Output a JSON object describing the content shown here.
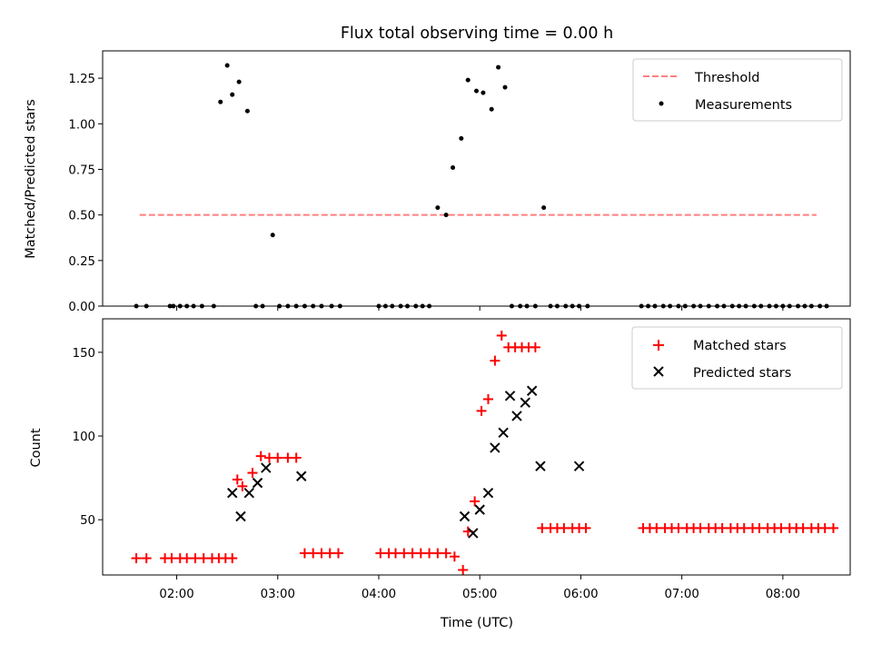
{
  "chart_data": [
    {
      "type": "scatter",
      "title": "Flux total observing time = 0.00 h",
      "ylabel": "Matched/Predicted stars",
      "xlabel": "",
      "xlim": [
        "01:16",
        "08:40"
      ],
      "ylim": [
        0,
        1.4
      ],
      "yticks": [
        0.0,
        0.25,
        0.5,
        0.75,
        1.0,
        1.25
      ],
      "ytick_labels": [
        "0.00",
        "0.25",
        "0.50",
        "0.75",
        "1.00",
        "1.25"
      ],
      "xticks": [
        "02:00",
        "03:00",
        "04:00",
        "05:00",
        "06:00",
        "07:00",
        "08:00"
      ],
      "legend": {
        "position": "upper right",
        "entries": [
          "Threshold",
          "Measurements"
        ]
      },
      "series": [
        {
          "name": "Threshold",
          "style": "dashed-line",
          "color": "#ff7f7f",
          "x": [
            "01:38",
            "08:20"
          ],
          "y": [
            0.5,
            0.5
          ]
        },
        {
          "name": "Measurements",
          "style": "dot",
          "color": "#000000",
          "x": [
            "01:36",
            "01:42",
            "01:56",
            "01:58",
            "02:02",
            "02:06",
            "02:10",
            "02:15",
            "02:22",
            "02:26",
            "02:30",
            "02:33",
            "02:37",
            "02:42",
            "02:47",
            "02:51",
            "02:57",
            "03:01",
            "03:06",
            "03:11",
            "03:16",
            "03:21",
            "03:26",
            "03:32",
            "03:37",
            "04:00",
            "04:04",
            "04:08",
            "04:13",
            "04:17",
            "04:22",
            "04:26",
            "04:30",
            "04:35",
            "04:40",
            "04:44",
            "04:49",
            "04:53",
            "04:58",
            "05:02",
            "05:07",
            "05:11",
            "05:15",
            "05:19",
            "05:24",
            "05:28",
            "05:33",
            "05:38",
            "05:42",
            "05:46",
            "05:51",
            "05:55",
            "05:59",
            "06:04",
            "06:36",
            "06:40",
            "06:44",
            "06:49",
            "06:53",
            "06:58",
            "07:02",
            "07:07",
            "07:11",
            "07:16",
            "07:21",
            "07:25",
            "07:30",
            "07:34",
            "07:38",
            "07:43",
            "07:47",
            "07:52",
            "07:56",
            "08:00",
            "08:04",
            "08:09",
            "08:13",
            "08:17",
            "08:22",
            "08:26"
          ],
          "y": [
            0,
            0,
            0,
            0,
            0,
            0,
            0,
            0,
            0,
            1.12,
            1.32,
            1.16,
            1.23,
            1.07,
            0,
            0,
            0.39,
            0,
            0,
            0,
            0,
            0,
            0,
            0,
            0,
            0,
            0,
            0,
            0,
            0,
            0,
            0,
            0,
            0.54,
            0.5,
            0.76,
            0.92,
            1.24,
            1.18,
            1.17,
            1.08,
            1.31,
            1.2,
            0,
            0,
            0,
            0,
            0.54,
            0,
            0,
            0,
            0,
            0,
            0,
            0,
            0,
            0,
            0,
            0,
            0,
            0,
            0,
            0,
            0,
            0,
            0,
            0,
            0,
            0,
            0,
            0,
            0,
            0,
            0,
            0,
            0,
            0,
            0,
            0,
            0
          ]
        }
      ]
    },
    {
      "type": "scatter",
      "title": "",
      "ylabel": "Count",
      "xlabel": "Time (UTC)",
      "xlim": [
        "01:16",
        "08:40"
      ],
      "ylim": [
        17,
        170
      ],
      "yticks": [
        50,
        100,
        150
      ],
      "xticks": [
        "02:00",
        "03:00",
        "04:00",
        "05:00",
        "06:00",
        "07:00",
        "08:00"
      ],
      "legend": {
        "position": "upper right",
        "entries": [
          "Matched stars",
          "Predicted stars"
        ]
      },
      "series": [
        {
          "name": "Matched stars",
          "marker": "plus",
          "color": "#ff0000",
          "x": [
            "01:36",
            "01:42",
            "01:53",
            "01:57",
            "02:02",
            "02:06",
            "02:11",
            "02:16",
            "02:21",
            "02:25",
            "02:29",
            "02:33",
            "02:36",
            "02:39",
            "02:45",
            "02:50",
            "02:55",
            "03:00",
            "03:06",
            "03:11",
            "03:16",
            "03:21",
            "03:26",
            "03:31",
            "03:36",
            "04:01",
            "04:06",
            "04:10",
            "04:15",
            "04:20",
            "04:25",
            "04:30",
            "04:35",
            "04:40",
            "04:45",
            "04:50",
            "04:53",
            "04:57",
            "05:01",
            "05:05",
            "05:09",
            "05:13",
            "05:17",
            "05:21",
            "05:25",
            "05:29",
            "05:33",
            "05:37",
            "05:42",
            "05:46",
            "05:50",
            "05:55",
            "05:59",
            "06:03",
            "06:37",
            "06:41",
            "06:45",
            "06:50",
            "06:54",
            "06:58",
            "07:03",
            "07:07",
            "07:11",
            "07:16",
            "07:20",
            "07:24",
            "07:29",
            "07:33",
            "07:37",
            "07:42",
            "07:46",
            "07:51",
            "07:55",
            "07:59",
            "08:04",
            "08:08",
            "08:12",
            "08:17",
            "08:21",
            "08:25",
            "08:30"
          ],
          "y": [
            27,
            27,
            27,
            27,
            27,
            27,
            27,
            27,
            27,
            27,
            27,
            27,
            74,
            70,
            78,
            88,
            87,
            87,
            87,
            87,
            30,
            30,
            30,
            30,
            30,
            30,
            30,
            30,
            30,
            30,
            30,
            30,
            30,
            30,
            28,
            20,
            43,
            61,
            115,
            122,
            145,
            160,
            153,
            153,
            153,
            153,
            153,
            45,
            45,
            45,
            45,
            45,
            45,
            45,
            45,
            45,
            45,
            45,
            45,
            45,
            45,
            45,
            45,
            45,
            45,
            45,
            45,
            45,
            45,
            45,
            45,
            45,
            45,
            45,
            45,
            45,
            45,
            45,
            45,
            45,
            45
          ]
        },
        {
          "name": "Predicted stars",
          "marker": "x",
          "color": "#000000",
          "x": [
            "02:33",
            "02:38",
            "02:43",
            "02:48",
            "02:53",
            "03:14",
            "04:51",
            "04:56",
            "05:00",
            "05:05",
            "05:09",
            "05:14",
            "05:18",
            "05:22",
            "05:27",
            "05:31",
            "05:36",
            "05:59"
          ],
          "y": [
            66,
            52,
            66,
            72,
            81,
            76,
            52,
            42,
            56,
            66,
            93,
            102,
            124,
            112,
            120,
            127,
            82,
            82
          ]
        }
      ]
    }
  ]
}
